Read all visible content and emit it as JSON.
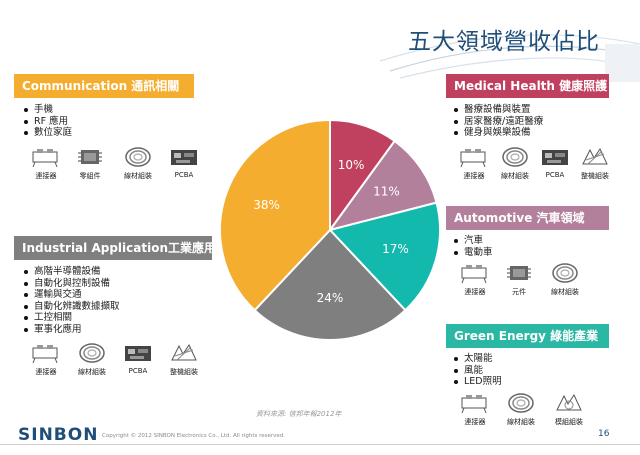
{
  "title": "五大領域營收佔比",
  "sections": {
    "communication": {
      "header": "Communication 通訊相關",
      "bullets": [
        "手機",
        "RF 應用",
        "數位家庭"
      ],
      "parts": [
        "連接器",
        "零組件",
        "線材組裝",
        "PCBA"
      ]
    },
    "industrial": {
      "header": "Industrial Application工業應用",
      "bullets": [
        "高階半導體設備",
        "自動化與控制設備",
        "運輸與交通",
        "自動化辨識數據擷取",
        "工控相關",
        "軍事化應用"
      ],
      "parts": [
        "連接器",
        "線材組裝",
        "PCBA",
        "整機組裝"
      ]
    },
    "medical": {
      "header": "Medical Health 健康照護",
      "bullets": [
        "醫療設備與裝置",
        "居家醫療/遠距醫療",
        "健身與娛樂設備"
      ],
      "parts": [
        "連接器",
        "線材組裝",
        "PCBA",
        "整機組裝"
      ]
    },
    "automotive": {
      "header": "Automotive 汽車領域",
      "bullets": [
        "汽車",
        "電動車"
      ],
      "parts": [
        "連接器",
        "元件",
        "線材組裝"
      ]
    },
    "green": {
      "header": "Green Energy 綠能產業",
      "bullets": [
        "太陽能",
        "風能",
        "LED照明"
      ],
      "parts": [
        "連接器",
        "線材組裝",
        "模組組裝"
      ]
    }
  },
  "colors": {
    "communication": "#f5ad2f",
    "industrial": "#7f7f7f",
    "medical": "#c0415f",
    "medical_light": "#b3809c",
    "automotive": "#14b9ae",
    "green": "#2ab7a3",
    "title": "#1f4e79"
  },
  "chart_data": {
    "type": "pie",
    "slices": [
      {
        "value": 10,
        "label": "10%",
        "color": "#c0415f"
      },
      {
        "value": 11,
        "label": "11%",
        "color": "#b3809c"
      },
      {
        "value": 17,
        "label": "17%",
        "color": "#14b9ae"
      },
      {
        "value": 24,
        "label": "24%",
        "color": "#7f7f7f"
      },
      {
        "value": 38,
        "label": "38%",
        "color": "#f5ad2f"
      }
    ],
    "start": "12 o'clock, clockwise"
  },
  "source": "資料來源: 信邦年報2012年",
  "footer": {
    "logo": "SINBON",
    "copyright": "Copyright © 2012 SINBON Electronics Co., Ltd. All rights reserved.",
    "page": "16"
  }
}
